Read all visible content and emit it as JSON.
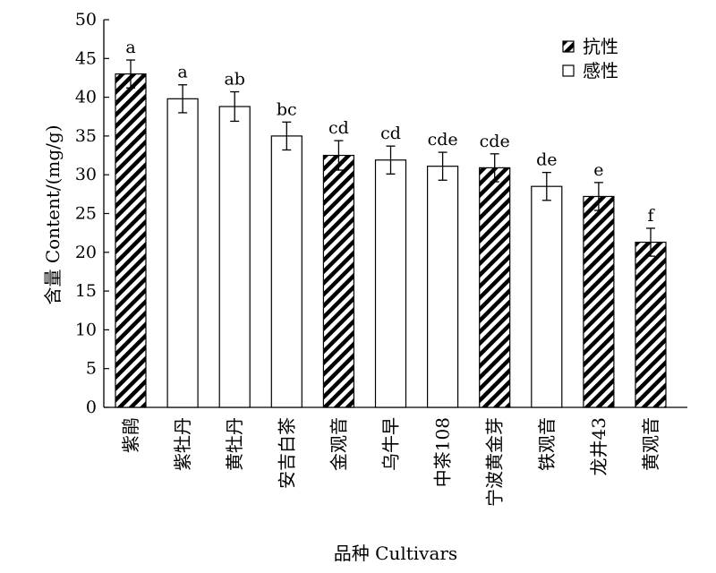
{
  "chart_data": {
    "type": "bar",
    "title": "",
    "ylabel": "含量 Content/(mg/g)",
    "xlabel": "品种 Cultivars",
    "ylim": [
      0,
      50
    ],
    "yticks": [
      0,
      5,
      10,
      15,
      20,
      25,
      30,
      35,
      40,
      45,
      50
    ],
    "grid": false,
    "legend_position": "top-right",
    "legend": [
      {
        "key": "resistant",
        "label": "抗性",
        "pattern": "hatched"
      },
      {
        "key": "susceptible",
        "label": "感性",
        "pattern": "white"
      }
    ],
    "categories": [
      "紫鹃",
      "紫牡丹",
      "黄牡丹",
      "安吉白茶",
      "金观音",
      "乌牛早",
      "中茶108",
      "宁波黄金芽",
      "铁观音",
      "龙井43",
      "黄观音"
    ],
    "values": [
      43.0,
      39.8,
      38.8,
      35.0,
      32.5,
      31.9,
      31.1,
      30.9,
      28.5,
      27.2,
      21.3
    ],
    "errors": [
      1.8,
      1.8,
      1.9,
      1.8,
      1.9,
      1.8,
      1.8,
      1.8,
      1.8,
      1.8,
      1.8
    ],
    "significance": [
      "a",
      "a",
      "ab",
      "bc",
      "cd",
      "cd",
      "cde",
      "cde",
      "de",
      "e",
      "f"
    ],
    "group": [
      "resistant",
      "susceptible",
      "susceptible",
      "susceptible",
      "resistant",
      "susceptible",
      "susceptible",
      "resistant",
      "susceptible",
      "resistant",
      "resistant"
    ]
  },
  "colors": {
    "axis": "#000000",
    "bar_fill": "#ffffff",
    "hatch": "#000000"
  }
}
